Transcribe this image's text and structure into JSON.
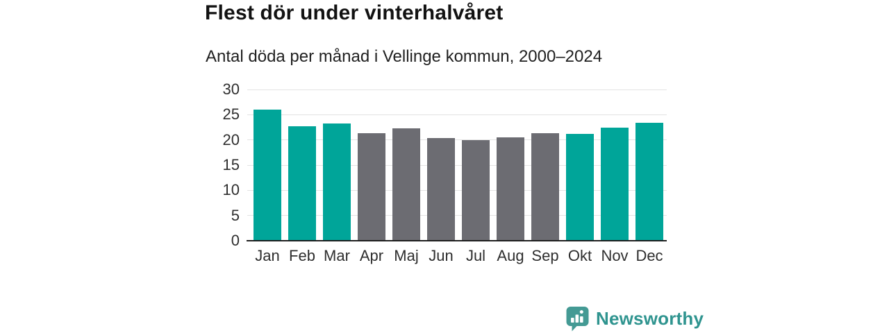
{
  "header": {
    "title": "Flest dör under vinterhalvåret",
    "subtitle": "Antal döda per månad i Vellinge kommun, 2000–2024"
  },
  "chart_data": {
    "type": "bar",
    "title": "Flest dör under vinterhalvåret",
    "subtitle": "Antal döda per månad i Vellinge kommun, 2000–2024",
    "categories": [
      "Jan",
      "Feb",
      "Mar",
      "Apr",
      "Maj",
      "Jun",
      "Jul",
      "Aug",
      "Sep",
      "Okt",
      "Nov",
      "Dec"
    ],
    "values": [
      26.0,
      22.7,
      23.3,
      21.3,
      22.3,
      20.4,
      20.0,
      20.5,
      21.4,
      21.2,
      22.5,
      23.4
    ],
    "seasons": [
      "winter",
      "winter",
      "winter",
      "summer",
      "summer",
      "summer",
      "summer",
      "summer",
      "summer",
      "winter",
      "winter",
      "winter"
    ],
    "bar_colors": [
      "#00a599",
      "#00a599",
      "#00a599",
      "#6c6c72",
      "#6c6c72",
      "#6c6c72",
      "#6c6c72",
      "#6c6c72",
      "#6c6c72",
      "#00a599",
      "#00a599",
      "#00a599"
    ],
    "highlight_color": "#00a599",
    "muted_color": "#6c6c72",
    "xlabel": "",
    "ylabel": "",
    "y_ticks": [
      0,
      5,
      10,
      15,
      20,
      25,
      30
    ],
    "ylim": [
      0,
      30
    ],
    "grid": "horizontal",
    "gridline_color": "#e3e3e3",
    "baseline_color": "#1e1e1e",
    "legend": "none"
  },
  "footer": {
    "brand": "Newsworthy",
    "brand_color": "#2f948f",
    "logo_icon": "bar-chart-speech-bubble",
    "logo_color": "#449a94"
  }
}
